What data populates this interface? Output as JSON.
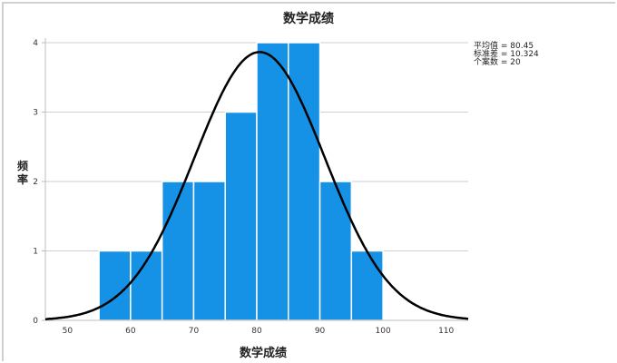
{
  "chart_data": {
    "type": "bar",
    "subtype": "histogram_with_normal_curve",
    "title": "数学成绩",
    "xlabel": "数学成绩",
    "ylabel": "频率",
    "bins": [
      [
        55,
        60
      ],
      [
        60,
        65
      ],
      [
        65,
        70
      ],
      [
        70,
        75
      ],
      [
        75,
        80
      ],
      [
        80,
        85
      ],
      [
        85,
        90
      ],
      [
        90,
        95
      ],
      [
        95,
        100
      ]
    ],
    "categories": [
      "55-60",
      "60-65",
      "65-70",
      "70-75",
      "75-80",
      "80-85",
      "85-90",
      "90-95",
      "95-100"
    ],
    "values": [
      1,
      1,
      2,
      2,
      3,
      4,
      4,
      2,
      1
    ],
    "x_ticks": [
      50,
      60,
      70,
      80,
      90,
      100,
      110
    ],
    "y_ticks": [
      0,
      1,
      2,
      3,
      4
    ],
    "xlim": [
      46.5,
      113.5
    ],
    "ylim": [
      0,
      4
    ],
    "grid": {
      "y": true,
      "x": false
    },
    "bar_color": "#1592e6",
    "curve_color": "#000000",
    "normal_curve": {
      "mean": 80.45,
      "std": 10.324,
      "n": 20,
      "bin_width": 5
    },
    "legend_position": "top-right",
    "stats": [
      {
        "label": "平均值",
        "value": "80.45"
      },
      {
        "label": "标准差",
        "value": "10.324"
      },
      {
        "label": "个案数",
        "value": "20"
      }
    ]
  }
}
